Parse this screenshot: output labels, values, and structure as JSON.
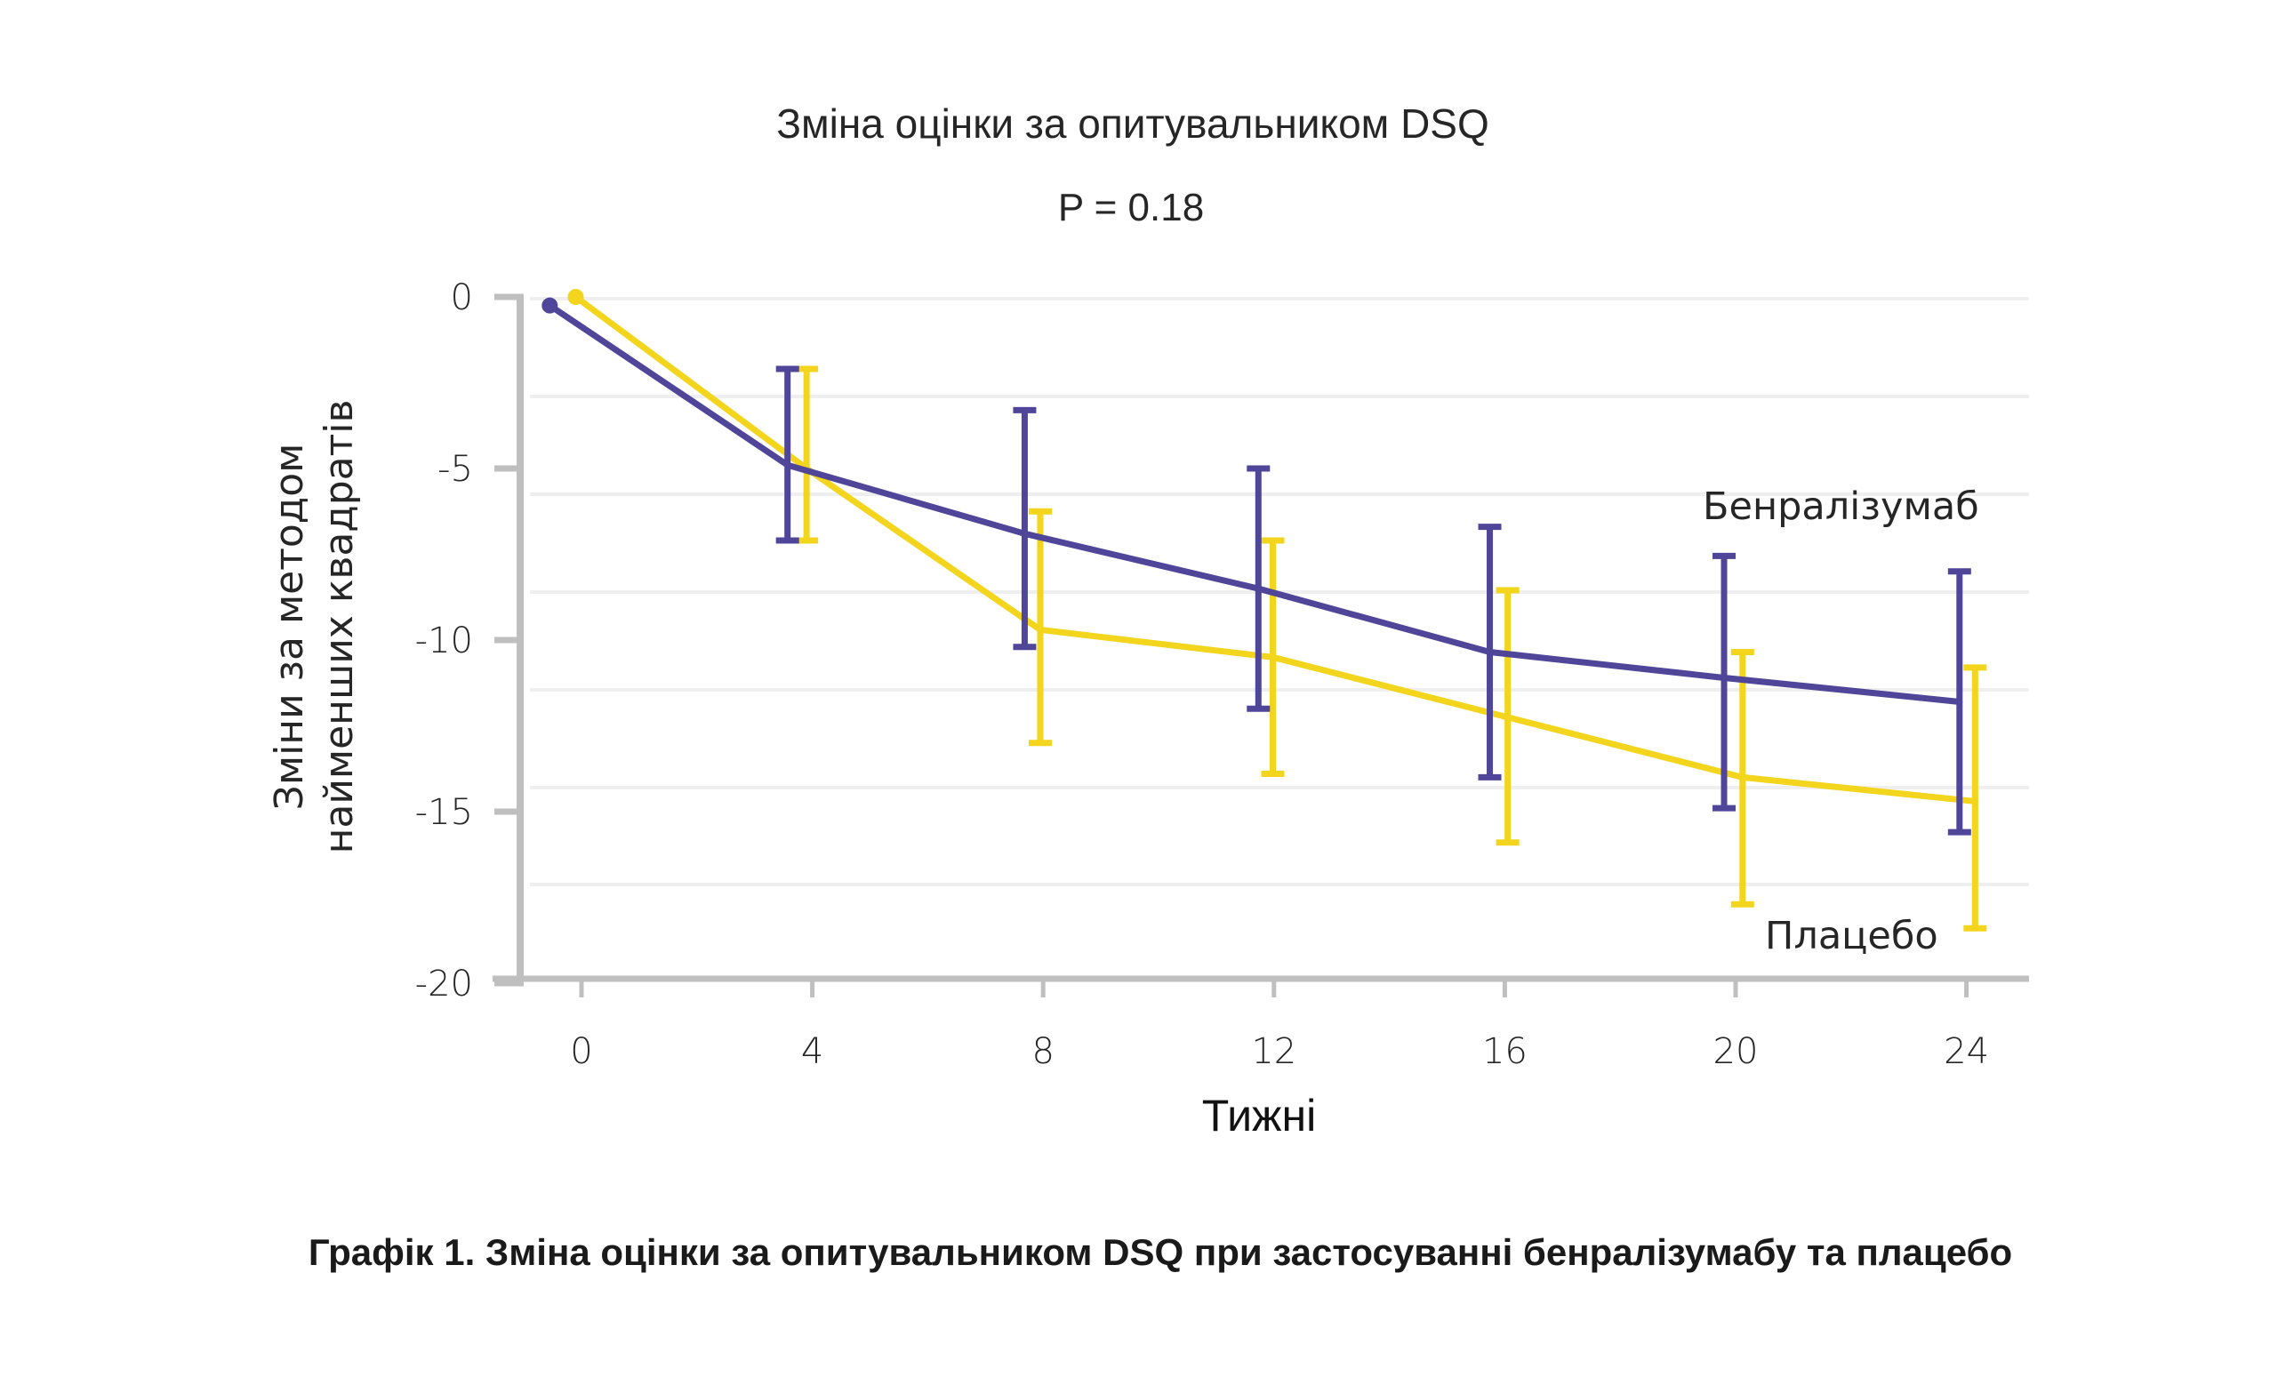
{
  "chart_data": {
    "type": "line",
    "title": "Зміна оцінки за опитувальником DSQ",
    "subtitle": "P = 0.18",
    "xlabel": "Тижні",
    "ylabel": [
      "Зміни за методом",
      "найменших квадратів"
    ],
    "x_ticks": [
      0,
      4,
      8,
      12,
      16,
      20,
      24
    ],
    "x_tick_labels": [
      "0",
      "4",
      "8",
      "12",
      "16",
      "20",
      "24"
    ],
    "y_ticks": [
      0,
      -5,
      -10,
      -15,
      -20
    ],
    "y_tick_labels": [
      "0",
      "-5",
      "-10",
      "-15",
      "-20"
    ],
    "xlim": [
      -1,
      25
    ],
    "ylim": [
      -20,
      0
    ],
    "grid": "horizontal",
    "legend_placement": "inline-right",
    "series": [
      {
        "name": "Бенралізумаб",
        "color": "#4f4599",
        "weeks": [
          0,
          4,
          8,
          12,
          16,
          20,
          24
        ],
        "plotted_x": [
          -0.55,
          3.57,
          7.68,
          11.73,
          15.74,
          19.8,
          23.88
        ],
        "values": [
          -0.25,
          -4.9,
          -6.9,
          -8.5,
          -10.35,
          -11.1,
          -11.8
        ],
        "error_upper": [
          null,
          -2.1,
          -3.3,
          -5.0,
          -6.7,
          -7.55,
          -8.0
        ],
        "error_lower": [
          null,
          -7.1,
          -10.2,
          -12.0,
          -14.0,
          -14.9,
          -15.6
        ]
      },
      {
        "name": "Плацебо",
        "color": "#f2d51c",
        "weeks": [
          0,
          4,
          8,
          12,
          16,
          20,
          24
        ],
        "plotted_x": [
          -0.1,
          3.9,
          7.95,
          11.98,
          16.05,
          20.12,
          24.15
        ],
        "values": [
          0.0,
          -5.0,
          -9.7,
          -10.5,
          -12.25,
          -14.0,
          -14.7
        ],
        "error_upper": [
          null,
          -2.1,
          -6.25,
          -7.1,
          -8.55,
          -10.35,
          -10.8
        ],
        "error_lower": [
          null,
          -7.1,
          -13.0,
          -13.9,
          -15.9,
          -17.7,
          -18.4
        ]
      }
    ]
  },
  "legend": {
    "benralizumab_label": "Бенралізумаб",
    "placebo_label": "Плацебо"
  },
  "caption": "Графік 1. Зміна оцінки за опитувальником DSQ при застосуванні бенралізумабу та плацебо",
  "colors": {
    "axis": "#bfbfbf",
    "grid": "#eeeeee",
    "text": "#262626"
  }
}
